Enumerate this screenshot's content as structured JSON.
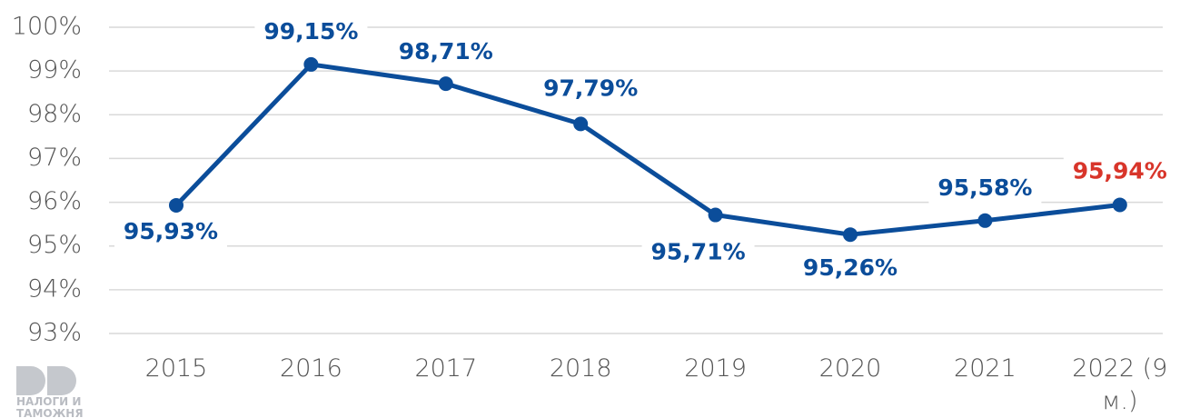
{
  "chart_data": {
    "type": "line",
    "categories": [
      "2015",
      "2016",
      "2017",
      "2018",
      "2019",
      "2020",
      "2021",
      "2022 (9 м.)"
    ],
    "series": [
      {
        "color": "#0b4d9a",
        "values": [
          95.93,
          99.15,
          98.71,
          97.79,
          95.71,
          95.26,
          95.58,
          95.94
        ],
        "value_labels": [
          "95,93%",
          "99,15%",
          "98,71%",
          "97,79%",
          "95,71%",
          "95,26%",
          "95,58%",
          "95,94%"
        ],
        "value_label_colors": [
          "#0b4d9a",
          "#0b4d9a",
          "#0b4d9a",
          "#0b4d9a",
          "#0b4d9a",
          "#0b4d9a",
          "#0b4d9a",
          "#d8352a"
        ]
      }
    ],
    "ylim": [
      93,
      100
    ],
    "yticks": [
      {
        "value": 93,
        "label": "93%"
      },
      {
        "value": 94,
        "label": "94%"
      },
      {
        "value": 95,
        "label": "95%"
      },
      {
        "value": 96,
        "label": "96%"
      },
      {
        "value": 97,
        "label": "97%"
      },
      {
        "value": 98,
        "label": "98%"
      },
      {
        "value": 99,
        "label": "99%"
      },
      {
        "value": 100,
        "label": "100%"
      }
    ],
    "grid": true,
    "logo_text": "НАЛОГИ И ТАМОЖНЯ"
  }
}
